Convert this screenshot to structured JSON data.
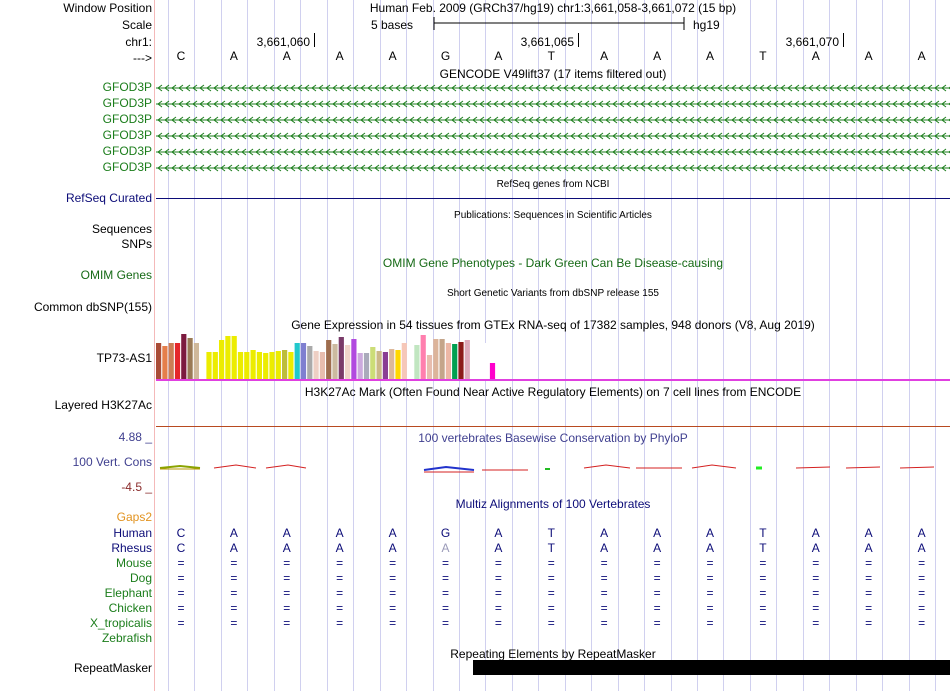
{
  "header": {
    "window_position_label": "Window Position",
    "assembly_title": "Human Feb. 2009 (GRCh37/hg19)   chr1:3,661,058-3,661,072 (15 bp)",
    "scale_label": "Scale",
    "scale_text": "5 bases",
    "scale_db": "hg19",
    "chrom_label": "chr1:",
    "strand_label": "--->",
    "positions": [
      "3,661,060",
      "3,661,065",
      "3,661,070"
    ]
  },
  "dna_bases": [
    "C",
    "A",
    "A",
    "A",
    "A",
    "G",
    "A",
    "T",
    "A",
    "A",
    "A",
    "T",
    "A",
    "A",
    "A"
  ],
  "gencode": {
    "title": "GENCODE V49lift37 (17 items filtered out)",
    "genes": [
      "GFOD3P",
      "GFOD3P",
      "GFOD3P",
      "GFOD3P",
      "GFOD3P",
      "GFOD3P"
    ],
    "color": "#1b7d1b"
  },
  "refseq": {
    "title": "RefSeq genes from NCBI",
    "label": "RefSeq Curated",
    "color": "#0c0c78"
  },
  "publications": {
    "title": "Publications: Sequences in Scientific Articles"
  },
  "sequences_label": "Sequences",
  "snps_label": "SNPs",
  "omim": {
    "label": "OMIM Genes",
    "title": "OMIM Gene Phenotypes - Dark Green Can Be Disease-causing",
    "color": "#166a16"
  },
  "dbsnp": {
    "label": "Common dbSNP(155)",
    "title": "Short Genetic Variants from dbSNP release 155"
  },
  "gtex": {
    "title": "Gene Expression in 54 tissues from GTEx RNA-seq of 17382 samples, 948 donors (V8, Aug 2019)",
    "gene_label": "TP73-AS1",
    "chart_data": {
      "type": "bar",
      "title": "Gene Expression in 54 tissues from GTEx RNA-seq of 17382 samples, 948 donors (V8, Aug 2019)",
      "values": [
        36,
        33,
        36,
        36,
        45,
        41,
        36,
        40,
        27,
        27,
        39,
        43,
        43,
        27,
        27,
        29,
        27,
        26,
        27,
        28,
        29,
        27,
        36,
        36,
        33,
        28,
        27,
        39,
        35,
        42,
        34,
        40,
        26,
        26,
        32,
        28,
        27,
        30,
        29,
        36,
        36,
        34,
        44,
        24,
        40,
        40,
        36,
        35,
        37,
        39,
        45,
        41,
        36,
        16
      ],
      "colors": [
        "#aa4c36",
        "#e57e4b",
        "#cc7d54",
        "#e5272a",
        "#7c1a3f",
        "#9a7a56",
        "#cfb89b",
        "#ffffff",
        "#ecec00",
        "#ecec00",
        "#ecec00",
        "#ecec00",
        "#ecec00",
        "#ecec00",
        "#ecec00",
        "#ecec00",
        "#ecec00",
        "#ecec00",
        "#ecec00",
        "#ecec00",
        "#bdbd3a",
        "#ecec00",
        "#22c8cc",
        "#7f7fd0",
        "#aaaaaa",
        "#eecfc4",
        "#e8bdae",
        "#9e6d4e",
        "#ccbaa0",
        "#7a3b69",
        "#f0d5c9",
        "#b14adf",
        "#ccaadd",
        "#aaaabb",
        "#ccdd77",
        "#ccb887",
        "#8a3d94",
        "#ddb899",
        "#ffd700",
        "#f6c7b8",
        "#ffffff",
        "#c1e6c1",
        "#ff7fae",
        "#e8bdae",
        "#dcb49a",
        "#c4a58a",
        "#ecb7a5",
        "#00a050",
        "#8b1a1a",
        "#ddaabb",
        "#ffffff",
        "#ffffff",
        "#ffffff",
        "#ff00cc"
      ]
    }
  },
  "h3k27ac": {
    "label": "Layered H3K27Ac",
    "title": "H3K27Ac Mark (Often Found Near Active Regulatory Elements) on 7 cell lines from ENCODE"
  },
  "cons": {
    "title": "100 vertebrates Basewise Conservation by PhyloP",
    "label": "100 Vert. Cons",
    "ymax": "4.88 _",
    "ymin": "-4.5 _",
    "label_color": "#3f3f8f",
    "min_color": "#8a2b2b"
  },
  "multiz": {
    "title": "Multiz Alignments of 100 Vertebrates",
    "gaps_label": "Gaps2",
    "gaps_color": "#e29320",
    "species": [
      {
        "name": "Human",
        "seq": [
          "C",
          "A",
          "A",
          "A",
          "A",
          "G",
          "A",
          "T",
          "A",
          "A",
          "A",
          "T",
          "A",
          "A",
          "A"
        ],
        "color": "#0c0c78"
      },
      {
        "name": "Rhesus",
        "seq": [
          "C",
          "A",
          "A",
          "A",
          "A",
          "A",
          "A",
          "T",
          "A",
          "A",
          "A",
          "T",
          "A",
          "A",
          "A"
        ],
        "color": "#0c0c78"
      },
      {
        "name": "Mouse",
        "seq": [
          "=",
          "=",
          "=",
          "=",
          "=",
          "=",
          "=",
          "=",
          "=",
          "=",
          "=",
          "=",
          "=",
          "=",
          "="
        ],
        "color": "#1b7d1b"
      },
      {
        "name": "Dog",
        "seq": [
          "=",
          "=",
          "=",
          "=",
          "=",
          "=",
          "=",
          "=",
          "=",
          "=",
          "=",
          "=",
          "=",
          "=",
          "="
        ],
        "color": "#1b7d1b"
      },
      {
        "name": "Elephant",
        "seq": [
          "=",
          "=",
          "=",
          "=",
          "=",
          "=",
          "=",
          "=",
          "=",
          "=",
          "=",
          "=",
          "=",
          "=",
          "="
        ],
        "color": "#1b7d1b"
      },
      {
        "name": "Chicken",
        "seq": [
          "=",
          "=",
          "=",
          "=",
          "=",
          "=",
          "=",
          "=",
          "=",
          "=",
          "=",
          "=",
          "=",
          "=",
          "="
        ],
        "color": "#1b7d1b"
      },
      {
        "name": "X_tropicalis",
        "seq": [
          "=",
          "=",
          "=",
          "=",
          "=",
          "=",
          "=",
          "=",
          "=",
          "=",
          "=",
          "=",
          "=",
          "=",
          "="
        ],
        "color": "#1b7d1b"
      },
      {
        "name": "Zebrafish",
        "seq": [],
        "color": "#1b7d1b"
      }
    ]
  },
  "repeatmasker": {
    "label": "RepeatMasker",
    "title": "Repeating Elements by RepeatMasker"
  },
  "colors": {
    "guide": "#d0d0ef",
    "gtex_base": "#e040e0",
    "h3k27ac_line": "#b84a20",
    "rhesus_mismatch": "#9a9ab8"
  }
}
